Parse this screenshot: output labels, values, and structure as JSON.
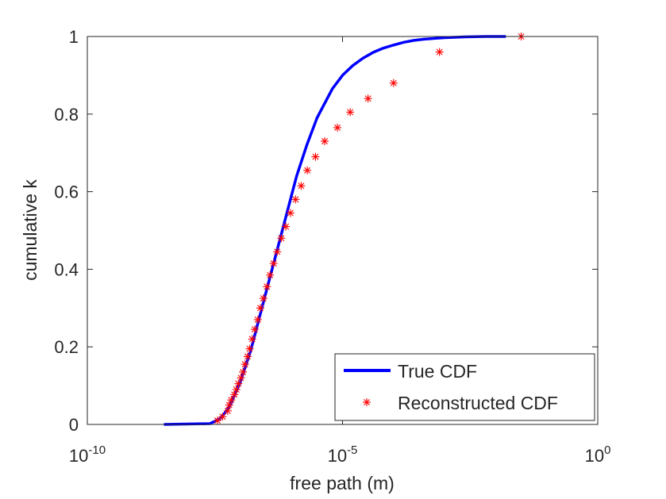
{
  "chart_data": {
    "type": "line",
    "title": "",
    "xlabel": "free path (m)",
    "ylabel": "cumulative k",
    "xscale": "log",
    "xlim_exp": [
      -10,
      0
    ],
    "ylim": [
      0,
      1
    ],
    "grid": false,
    "legend_position": "bottom-right",
    "x_ticks": [
      {
        "base": "10",
        "exp": "-10"
      },
      {
        "base": "10",
        "exp": "-5"
      },
      {
        "base": "10",
        "exp": "0"
      }
    ],
    "y_ticks": [
      "0",
      "0.2",
      "0.4",
      "0.6",
      "0.8",
      "1"
    ],
    "series": [
      {
        "name": "True CDF",
        "style": "solid-line",
        "color": "#0000ff",
        "log10_x": [
          -8.5,
          -7.6,
          -7.4,
          -7.3,
          -7.2,
          -7.1,
          -7.0,
          -6.9,
          -6.8,
          -6.7,
          -6.6,
          -6.5,
          -6.4,
          -6.3,
          -6.2,
          -6.1,
          -6.0,
          -5.9,
          -5.8,
          -5.7,
          -5.6,
          -5.5,
          -5.4,
          -5.3,
          -5.2,
          -5.0,
          -4.8,
          -4.6,
          -4.4,
          -4.2,
          -4.0,
          -3.8,
          -3.6,
          -3.4,
          -3.2,
          -3.0,
          -2.6,
          -2.2,
          -1.8
        ],
        "y": [
          0.0,
          0.002,
          0.015,
          0.03,
          0.05,
          0.08,
          0.11,
          0.15,
          0.19,
          0.24,
          0.29,
          0.34,
          0.39,
          0.44,
          0.49,
          0.54,
          0.59,
          0.64,
          0.68,
          0.72,
          0.755,
          0.79,
          0.815,
          0.84,
          0.865,
          0.9,
          0.925,
          0.944,
          0.959,
          0.97,
          0.978,
          0.985,
          0.99,
          0.993,
          0.995,
          0.997,
          0.999,
          1.0,
          1.0
        ]
      },
      {
        "name": "Reconstructed CDF",
        "style": "asterisk-markers",
        "color": "#ff0000",
        "log10_x": [
          -7.45,
          -7.35,
          -7.25,
          -7.22,
          -7.18,
          -7.12,
          -7.08,
          -7.04,
          -6.99,
          -6.95,
          -6.91,
          -6.86,
          -6.82,
          -6.77,
          -6.72,
          -6.66,
          -6.61,
          -6.55,
          -6.48,
          -6.42,
          -6.35,
          -6.28,
          -6.2,
          -6.11,
          -6.02,
          -5.92,
          -5.81,
          -5.69,
          -5.53,
          -5.35,
          -5.1,
          -4.85,
          -4.5,
          -4.0,
          -3.1,
          -1.5
        ],
        "y": [
          0.01,
          0.02,
          0.035,
          0.05,
          0.063,
          0.077,
          0.09,
          0.105,
          0.12,
          0.135,
          0.155,
          0.175,
          0.195,
          0.22,
          0.245,
          0.27,
          0.3,
          0.325,
          0.355,
          0.385,
          0.415,
          0.445,
          0.48,
          0.51,
          0.545,
          0.58,
          0.615,
          0.655,
          0.69,
          0.73,
          0.765,
          0.805,
          0.84,
          0.88,
          0.96,
          1.0
        ]
      }
    ]
  }
}
